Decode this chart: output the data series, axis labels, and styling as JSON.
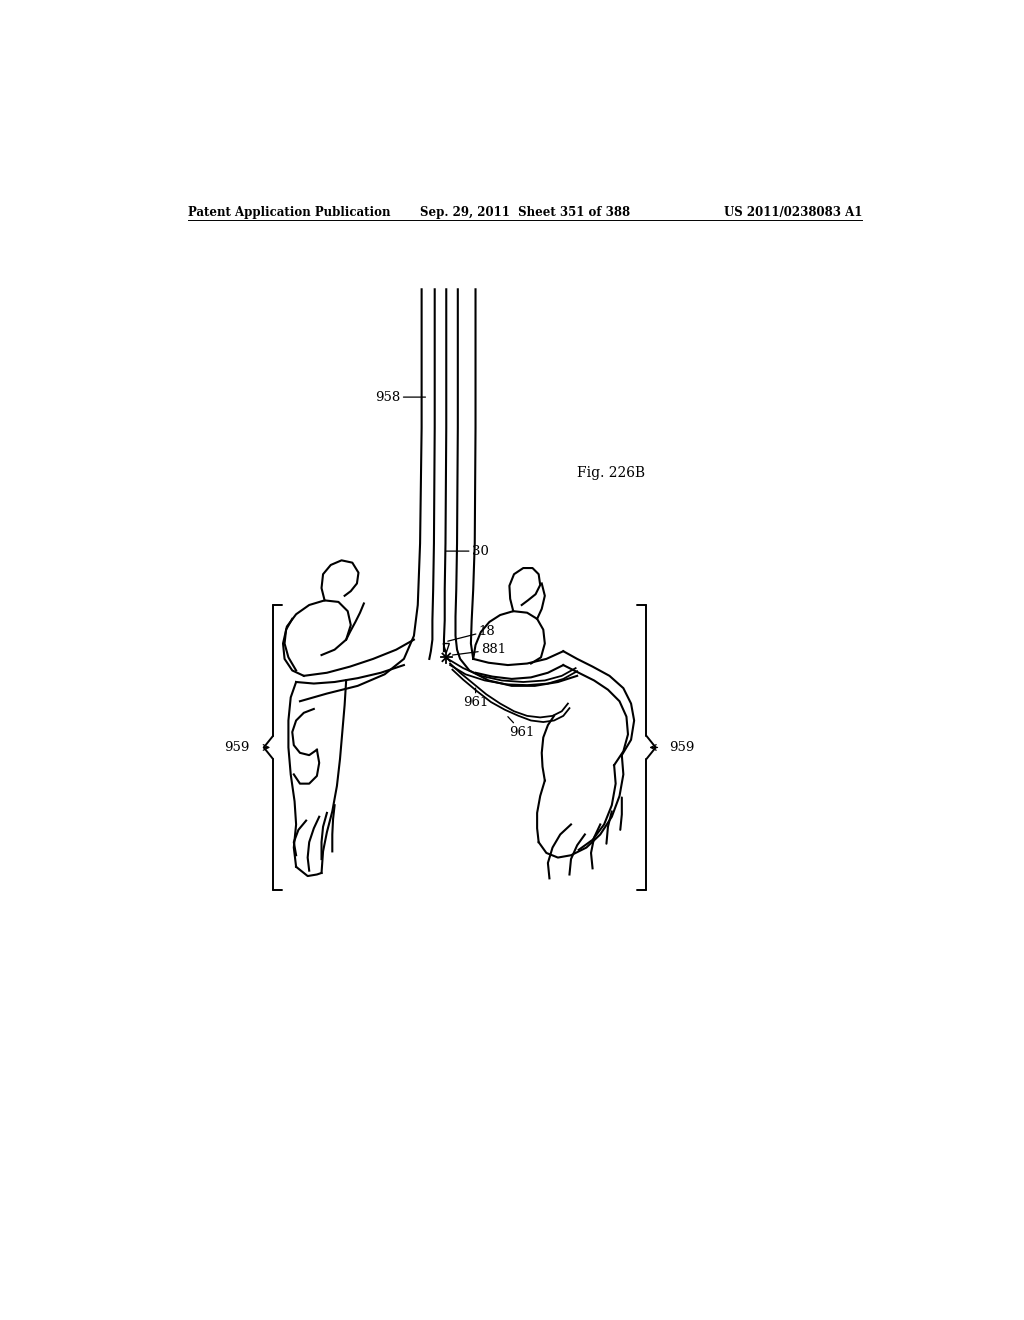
{
  "header_left": "Patent Application Publication",
  "header_middle": "Sep. 29, 2011  Sheet 351 of 388",
  "header_right": "US 2011/0238083 A1",
  "fig_label": "Fig. 226B",
  "background_color": "#ffffff",
  "line_color": "#000000",
  "lw_main": 1.5,
  "lw_thin": 1.2,
  "lw_brace": 1.4,
  "fs_label": 9.5,
  "fs_header": 8.5,
  "fs_fig": 10
}
